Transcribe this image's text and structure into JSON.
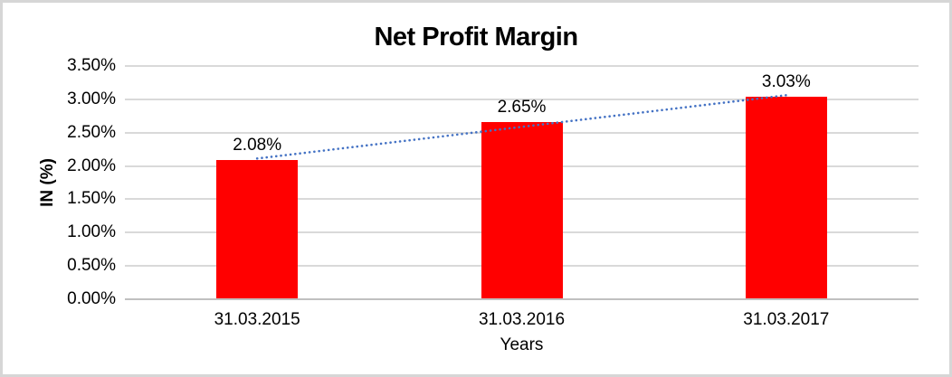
{
  "window": {
    "background": "#FFFFFF",
    "border_color": "#D6D6D6"
  },
  "chart_data": {
    "type": "bar",
    "title": "Net Profit Margin",
    "categories": [
      "31.03.2015",
      "31.03.2016",
      "31.03.2017"
    ],
    "values": [
      2.08,
      2.65,
      3.03
    ],
    "data_labels": [
      "2.08%",
      "2.65%",
      "3.03%"
    ],
    "xlabel": "Years",
    "ylabel": "IN (%)",
    "ylim": [
      0,
      3.5
    ],
    "ytick_step": 0.5,
    "ytick_labels": [
      "0.00%",
      "0.50%",
      "1.00%",
      "1.50%",
      "2.00%",
      "2.50%",
      "3.00%",
      "3.50%"
    ],
    "grid": true,
    "legend": false,
    "trendline": {
      "style": "dotted",
      "fit": "linear"
    },
    "colors": {
      "bar": "#FF0000",
      "trendline": "#4472C4",
      "gridline": "#D9D9D9",
      "axis_line": "#C0C0C0",
      "text": "#000000"
    }
  }
}
